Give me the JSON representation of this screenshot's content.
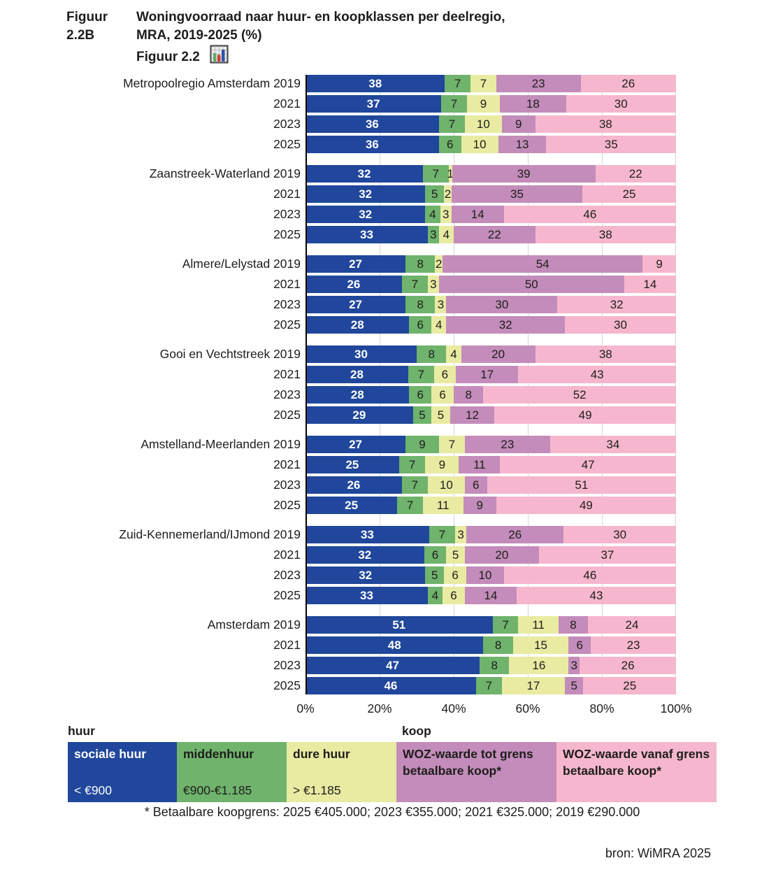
{
  "title": {
    "figure_label": "Figuur 2.2B",
    "line1": "Woningvoorraad naar huur- en koopklassen per deelregio,",
    "line2": "MRA, 2019-2025 (%)",
    "figure_link": "Figuur 2.2"
  },
  "chart_data": {
    "type": "bar",
    "stacked": true,
    "orientation": "horizontal",
    "unit": "%",
    "xlim": [
      0,
      100
    ],
    "x_ticks": [
      "0%",
      "20%",
      "40%",
      "60%",
      "80%",
      "100%"
    ],
    "grid": "vertical",
    "series_names": [
      "sociale huur",
      "middenhuur",
      "dure huur",
      "WOZ-waarde tot grens betaalbare koop*",
      "WOZ-waarde vanaf grens betaalbare koop*"
    ],
    "series_keys": [
      "sociale-huur",
      "middenhuur",
      "dure-huur",
      "woz-tot-grens",
      "woz-vanaf-grens"
    ],
    "colors": [
      "#20479B",
      "#6FB36C",
      "#E9EBA2",
      "#C38CBA",
      "#F6B7CE"
    ],
    "groups": [
      {
        "region": "Metropoolregio Amsterdam",
        "rows": [
          {
            "year": "2019",
            "values": [
              38,
              7,
              7,
              23,
              26
            ]
          },
          {
            "year": "2021",
            "values": [
              37,
              7,
              9,
              18,
              30
            ]
          },
          {
            "year": "2023",
            "values": [
              36,
              7,
              10,
              9,
              38
            ]
          },
          {
            "year": "2025",
            "values": [
              36,
              6,
              10,
              13,
              35
            ]
          }
        ]
      },
      {
        "region": "Zaanstreek-Waterland",
        "rows": [
          {
            "year": "2019",
            "values": [
              32,
              7,
              1,
              39,
              22
            ]
          },
          {
            "year": "2021",
            "values": [
              32,
              5,
              2,
              35,
              25
            ]
          },
          {
            "year": "2023",
            "values": [
              32,
              4,
              3,
              14,
              46
            ]
          },
          {
            "year": "2025",
            "values": [
              33,
              3,
              4,
              22,
              38
            ]
          }
        ]
      },
      {
        "region": "Almere/Lelystad",
        "rows": [
          {
            "year": "2019",
            "values": [
              27,
              8,
              2,
              54,
              9
            ]
          },
          {
            "year": "2021",
            "values": [
              26,
              7,
              3,
              50,
              14
            ]
          },
          {
            "year": "2023",
            "values": [
              27,
              8,
              3,
              30,
              32
            ]
          },
          {
            "year": "2025",
            "values": [
              28,
              6,
              4,
              32,
              30
            ]
          }
        ]
      },
      {
        "region": "Gooi en Vechtstreek",
        "rows": [
          {
            "year": "2019",
            "values": [
              30,
              8,
              4,
              20,
              38
            ]
          },
          {
            "year": "2021",
            "values": [
              28,
              7,
              6,
              17,
              43
            ]
          },
          {
            "year": "2023",
            "values": [
              28,
              6,
              6,
              8,
              52
            ]
          },
          {
            "year": "2025",
            "values": [
              29,
              5,
              5,
              12,
              49
            ]
          }
        ]
      },
      {
        "region": "Amstelland-Meerlanden",
        "rows": [
          {
            "year": "2019",
            "values": [
              27,
              9,
              7,
              23,
              34
            ]
          },
          {
            "year": "2021",
            "values": [
              25,
              7,
              9,
              11,
              47
            ]
          },
          {
            "year": "2023",
            "values": [
              26,
              7,
              10,
              6,
              51
            ]
          },
          {
            "year": "2025",
            "values": [
              25,
              7,
              11,
              9,
              49
            ]
          }
        ]
      },
      {
        "region": "Zuid-Kennemerland/IJmond",
        "rows": [
          {
            "year": "2019",
            "values": [
              33,
              7,
              3,
              26,
              30
            ]
          },
          {
            "year": "2021",
            "values": [
              32,
              6,
              5,
              20,
              37
            ]
          },
          {
            "year": "2023",
            "values": [
              32,
              5,
              6,
              10,
              46
            ]
          },
          {
            "year": "2025",
            "values": [
              33,
              4,
              6,
              14,
              43
            ]
          }
        ]
      },
      {
        "region": "Amsterdam",
        "rows": [
          {
            "year": "2019",
            "values": [
              51,
              7,
              11,
              8,
              24
            ]
          },
          {
            "year": "2021",
            "values": [
              48,
              8,
              15,
              6,
              23
            ]
          },
          {
            "year": "2023",
            "values": [
              47,
              8,
              16,
              3,
              26
            ]
          },
          {
            "year": "2025",
            "values": [
              46,
              7,
              17,
              5,
              25
            ]
          }
        ]
      }
    ]
  },
  "legend": {
    "huur_header": "huur",
    "koop_header": "koop",
    "items": [
      {
        "name": "sociale huur",
        "range": "< €900",
        "color": "#20479B"
      },
      {
        "name": "middenhuur",
        "range": "€900-€1.185",
        "color": "#6FB36C"
      },
      {
        "name": "dure huur",
        "range": "> €1.185",
        "color": "#E9EBA2"
      },
      {
        "name": "WOZ-waarde tot grens betaalbare koop*",
        "range": "",
        "color": "#C38CBA"
      },
      {
        "name": "WOZ-waarde vanaf grens betaalbare koop*",
        "range": "",
        "color": "#F6B7CE"
      }
    ]
  },
  "footnote": "* Betaalbare koopgrens: 2025 €405.000; 2023 €355.000; 2021 €325.000; 2019 €290.000",
  "source": "bron: WiMRA 2025"
}
